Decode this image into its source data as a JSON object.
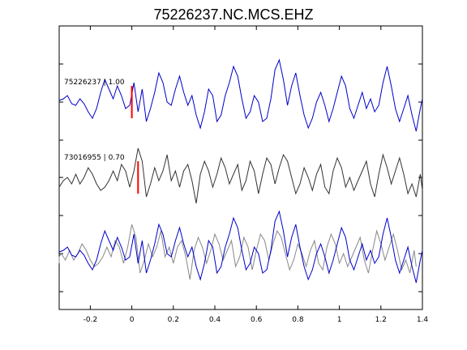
{
  "chart_data": {
    "type": "line",
    "title": "75226237.NC.MCS.EHZ",
    "xlabel": "",
    "ylabel": "",
    "xlim": [
      -0.35,
      1.4
    ],
    "x_ticks": [
      "-0.2",
      "0",
      "0.2",
      "0.4",
      "0.6",
      "0.8",
      "1",
      "1.2",
      "1.4"
    ],
    "x_tick_values": [
      -0.2,
      0,
      0.2,
      0.4,
      0.6,
      0.8,
      1.0,
      1.2,
      1.4
    ],
    "grid": false,
    "colors": {
      "trace_a": "#0000cc",
      "trace_b": "#333333",
      "overlay_b": "#888888",
      "pick": "#ff0000"
    },
    "series": [
      {
        "label": "75226237 | 1.00",
        "row": 0,
        "pick_x": 0.0,
        "x": [
          -0.35,
          -0.33,
          -0.31,
          -0.29,
          -0.27,
          -0.25,
          -0.23,
          -0.21,
          -0.19,
          -0.17,
          -0.15,
          -0.13,
          -0.11,
          -0.09,
          -0.07,
          -0.05,
          -0.03,
          -0.01,
          0.01,
          0.03,
          0.05,
          0.07,
          0.09,
          0.11,
          0.13,
          0.15,
          0.17,
          0.19,
          0.21,
          0.23,
          0.25,
          0.27,
          0.29,
          0.31,
          0.33,
          0.35,
          0.37,
          0.39,
          0.41,
          0.43,
          0.45,
          0.47,
          0.49,
          0.51,
          0.53,
          0.55,
          0.57,
          0.59,
          0.61,
          0.63,
          0.65,
          0.67,
          0.69,
          0.71,
          0.73,
          0.75,
          0.77,
          0.79,
          0.81,
          0.83,
          0.85,
          0.87,
          0.89,
          0.91,
          0.93,
          0.95,
          0.97,
          0.99,
          1.01,
          1.03,
          1.05,
          1.07,
          1.09,
          1.11,
          1.13,
          1.15,
          1.17,
          1.19,
          1.21,
          1.23,
          1.25,
          1.27,
          1.29,
          1.31,
          1.33,
          1.35,
          1.37,
          1.39,
          1.4
        ],
        "y": [
          0.05,
          0.1,
          0.2,
          -0.05,
          -0.1,
          0.1,
          -0.05,
          -0.3,
          -0.5,
          -0.2,
          0.3,
          0.7,
          0.4,
          0.1,
          0.5,
          0.2,
          -0.2,
          -0.1,
          0.6,
          -0.3,
          0.4,
          -0.6,
          -0.2,
          0.3,
          0.9,
          0.6,
          0.0,
          -0.1,
          0.4,
          0.8,
          0.3,
          -0.1,
          0.2,
          -0.4,
          -0.8,
          -0.3,
          0.4,
          0.2,
          -0.6,
          -0.4,
          0.2,
          0.6,
          1.1,
          0.8,
          0.1,
          -0.5,
          -0.3,
          0.2,
          0.0,
          -0.6,
          -0.5,
          0.1,
          1.0,
          1.3,
          0.7,
          -0.1,
          0.5,
          0.9,
          0.2,
          -0.4,
          -0.8,
          -0.5,
          0.0,
          0.3,
          -0.1,
          -0.6,
          -0.2,
          0.3,
          0.8,
          0.5,
          -0.2,
          -0.5,
          -0.1,
          0.3,
          -0.2,
          0.1,
          -0.3,
          -0.1,
          0.6,
          1.1,
          0.5,
          -0.2,
          -0.6,
          -0.2,
          0.2,
          -0.4,
          -0.9,
          -0.2,
          0.1
        ]
      },
      {
        "label": "73016955 | 0.70",
        "row": 1,
        "pick_x": 0.03,
        "x": [
          -0.35,
          -0.33,
          -0.31,
          -0.29,
          -0.27,
          -0.25,
          -0.23,
          -0.21,
          -0.19,
          -0.17,
          -0.15,
          -0.13,
          -0.11,
          -0.09,
          -0.07,
          -0.05,
          -0.03,
          -0.01,
          0.01,
          0.03,
          0.05,
          0.07,
          0.09,
          0.11,
          0.13,
          0.15,
          0.17,
          0.19,
          0.21,
          0.23,
          0.25,
          0.27,
          0.29,
          0.31,
          0.33,
          0.35,
          0.37,
          0.39,
          0.41,
          0.43,
          0.45,
          0.47,
          0.49,
          0.51,
          0.53,
          0.55,
          0.57,
          0.59,
          0.61,
          0.63,
          0.65,
          0.67,
          0.69,
          0.71,
          0.73,
          0.75,
          0.77,
          0.79,
          0.81,
          0.83,
          0.85,
          0.87,
          0.89,
          0.91,
          0.93,
          0.95,
          0.97,
          0.99,
          1.01,
          1.03,
          1.05,
          1.07,
          1.09,
          1.11,
          1.13,
          1.15,
          1.17,
          1.19,
          1.21,
          1.23,
          1.25,
          1.27,
          1.29,
          1.31,
          1.33,
          1.35,
          1.37,
          1.39,
          1.4
        ],
        "y": [
          -0.3,
          -0.1,
          0.0,
          -0.2,
          0.1,
          -0.2,
          0.0,
          0.3,
          0.1,
          -0.2,
          -0.4,
          -0.3,
          -0.1,
          0.2,
          -0.1,
          0.4,
          0.2,
          -0.3,
          0.2,
          0.9,
          0.5,
          -0.6,
          -0.2,
          0.3,
          -0.1,
          0.2,
          0.7,
          -0.1,
          0.2,
          -0.3,
          0.2,
          0.4,
          -0.1,
          -0.8,
          0.1,
          0.5,
          0.2,
          -0.3,
          0.1,
          0.6,
          0.3,
          -0.2,
          0.1,
          0.4,
          -0.4,
          -0.1,
          0.5,
          0.2,
          -0.5,
          0.1,
          0.6,
          0.4,
          -0.2,
          0.3,
          0.7,
          0.5,
          0.0,
          -0.5,
          -0.2,
          0.3,
          0.0,
          -0.4,
          0.1,
          0.4,
          -0.3,
          -0.5,
          0.2,
          0.6,
          0.3,
          -0.3,
          0.0,
          -0.4,
          -0.1,
          0.2,
          0.5,
          -0.2,
          -0.6,
          0.1,
          0.7,
          0.3,
          -0.2,
          0.2,
          0.6,
          0.1,
          -0.5,
          -0.2,
          -0.6,
          0.1,
          -0.4
        ]
      }
    ]
  }
}
